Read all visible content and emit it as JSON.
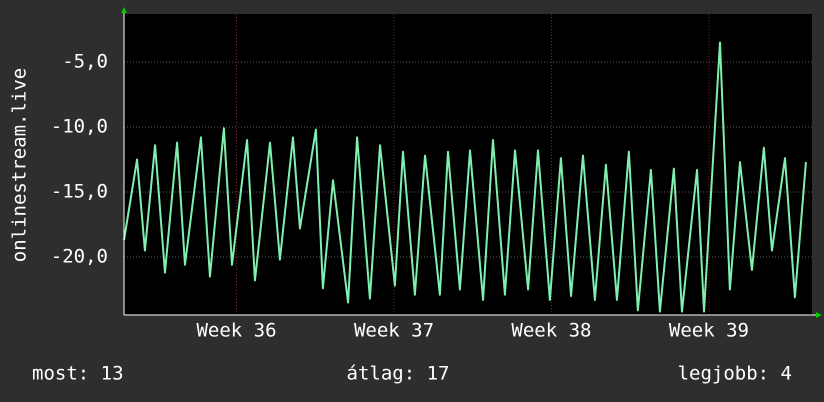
{
  "chart_data": {
    "type": "line",
    "y_label": "onlinestream.live",
    "xlim": [
      0,
      30.58
    ],
    "ylim": [
      -24.46,
      -1.31
    ],
    "xticks": [
      {
        "value": 5,
        "label": "Week 36"
      },
      {
        "value": 12,
        "label": "Week 37"
      },
      {
        "value": 19,
        "label": "Week 38"
      },
      {
        "value": 26,
        "label": "Week 39"
      }
    ],
    "yticks": [
      {
        "value": -20,
        "label": "-20,0"
      },
      {
        "value": -15,
        "label": "-15,0"
      },
      {
        "value": -10,
        "label": "-10,0"
      },
      {
        "value": -5,
        "label": "-5,0"
      }
    ],
    "grid": true,
    "series": [
      {
        "color": "#80f0b0",
        "x": [
          0,
          0.58,
          0.93,
          1.38,
          1.82,
          2.36,
          2.71,
          3.42,
          3.82,
          4.44,
          4.8,
          5.47,
          5.82,
          6.49,
          6.93,
          7.51,
          7.82,
          8.53,
          8.84,
          9.29,
          9.96,
          10.36,
          10.93,
          11.38,
          12.04,
          12.4,
          12.93,
          13.38,
          14.04,
          14.4,
          14.93,
          15.38,
          15.96,
          16.4,
          16.93,
          17.38,
          17.96,
          18.4,
          18.93,
          19.42,
          19.87,
          20.4,
          20.93,
          21.42,
          21.91,
          22.44,
          22.84,
          23.42,
          23.82,
          24.44,
          24.8,
          25.47,
          25.78,
          26.49,
          26.93,
          27.38,
          27.91,
          28.44,
          28.8,
          29.38,
          29.82,
          30.31
        ],
        "values": [
          -18.7,
          -12.5,
          -19.5,
          -11.4,
          -21.2,
          -11.2,
          -20.6,
          -10.8,
          -21.5,
          -10.1,
          -20.6,
          -11.0,
          -21.8,
          -11.2,
          -20.2,
          -10.8,
          -17.8,
          -10.2,
          -22.4,
          -14.1,
          -23.5,
          -10.8,
          -23.2,
          -11.4,
          -22.2,
          -11.9,
          -22.9,
          -12.2,
          -22.9,
          -11.9,
          -22.5,
          -11.8,
          -23.3,
          -11.0,
          -22.9,
          -11.8,
          -22.5,
          -11.8,
          -23.3,
          -12.4,
          -23.0,
          -12.2,
          -23.3,
          -12.9,
          -23.3,
          -11.9,
          -24.1,
          -13.3,
          -24.2,
          -13.2,
          -24.2,
          -13.3,
          -24.2,
          -3.5,
          -22.5,
          -12.7,
          -21.0,
          -11.6,
          -19.5,
          -12.4,
          -23.1,
          -12.7
        ]
      }
    ],
    "footer": [
      "most: 13",
      "átlag: 17",
      "legjobb: 4"
    ]
  }
}
